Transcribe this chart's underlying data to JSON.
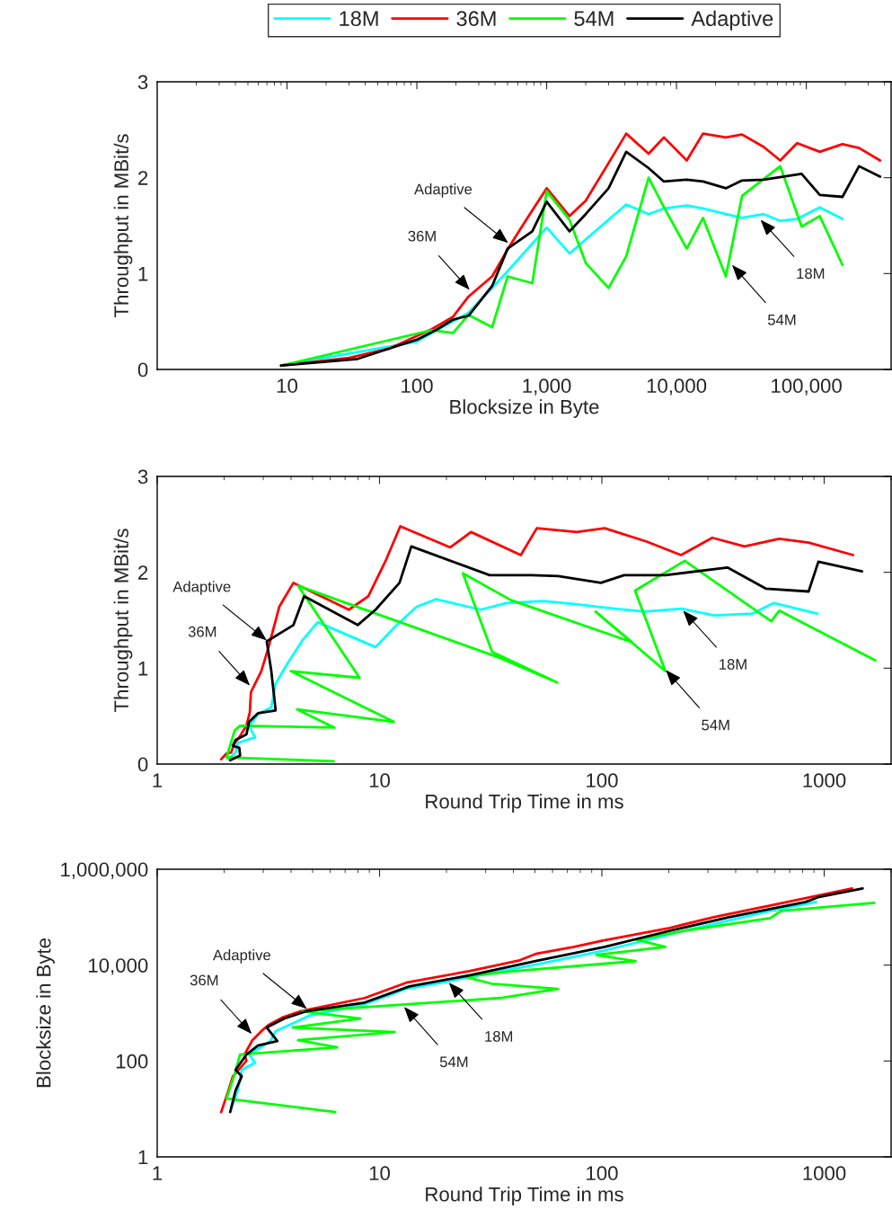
{
  "chart_data": [
    {
      "type": "line",
      "xlabel": "Blocksize in Byte",
      "ylabel": "Throughput in MBit/s",
      "log": "x",
      "legend": "top",
      "xlim": [
        1,
        450000
      ],
      "ylim": [
        0,
        3
      ],
      "xticks": [
        10,
        100,
        {
          "value": 1000,
          "label": "1,000"
        },
        {
          "value": 10000,
          "label": "10,000"
        },
        {
          "value": 100000,
          "label": "100,000"
        }
      ],
      "yticks": [
        0,
        1,
        2,
        3
      ],
      "series": [
        {
          "name": "18M",
          "color": "#00ffff",
          "x": [
            9,
            100,
            130,
            250,
            490,
            1000,
            1500,
            4100,
            6100,
            8100,
            12000,
            16000,
            24000,
            32000,
            47000,
            63000,
            85000,
            127000,
            190000
          ],
          "values": [
            0.04,
            0.29,
            0.38,
            0.59,
            1.01,
            1.48,
            1.21,
            1.72,
            1.62,
            1.68,
            1.71,
            1.68,
            1.62,
            1.58,
            1.62,
            1.55,
            1.57,
            1.69,
            1.57
          ]
        },
        {
          "name": "36M",
          "color": "#ff0000",
          "x": [
            9,
            30,
            62,
            130,
            190,
            250,
            380,
            520,
            750,
            1000,
            1500,
            2000,
            2900,
            4100,
            6100,
            8000,
            12000,
            16000,
            24000,
            32000,
            47000,
            63000,
            85000,
            127000,
            190000,
            255000,
            370000
          ],
          "values": [
            0.04,
            0.12,
            0.22,
            0.42,
            0.55,
            0.76,
            0.97,
            1.29,
            1.63,
            1.89,
            1.6,
            1.76,
            2.12,
            2.46,
            2.25,
            2.42,
            2.18,
            2.46,
            2.42,
            2.45,
            2.32,
            2.18,
            2.36,
            2.27,
            2.35,
            2.31,
            2.18
          ]
        },
        {
          "name": "54M",
          "color": "#00ff00",
          "x": [
            9,
            130,
            190,
            250,
            380,
            500,
            775,
            1000,
            1500,
            2000,
            3000,
            4100,
            6100,
            8100,
            12000,
            16000,
            24000,
            32000,
            63000,
            92000,
            127000,
            190000
          ],
          "values": [
            0.04,
            0.41,
            0.38,
            0.57,
            0.44,
            0.97,
            0.9,
            1.86,
            1.56,
            1.11,
            0.85,
            1.18,
            2.0,
            1.68,
            1.26,
            1.58,
            0.97,
            1.81,
            2.12,
            1.49,
            1.6,
            1.09
          ]
        },
        {
          "name": "Adaptive",
          "color": "#000000",
          "x": [
            9,
            35,
            62,
            100,
            140,
            190,
            250,
            380,
            500,
            775,
            1000,
            1500,
            2000,
            3000,
            4100,
            6100,
            8000,
            12000,
            16000,
            24000,
            32000,
            47000,
            92000,
            127000,
            190000,
            255000,
            370000
          ],
          "values": [
            0.04,
            0.11,
            0.22,
            0.31,
            0.41,
            0.52,
            0.56,
            0.87,
            1.26,
            1.44,
            1.75,
            1.44,
            1.62,
            1.89,
            2.27,
            2.1,
            1.96,
            1.98,
            1.96,
            1.89,
            1.97,
            1.98,
            2.04,
            1.82,
            1.8,
            2.12,
            2.01
          ]
        }
      ],
      "annotations": [
        {
          "text": "Adaptive",
          "x": 505,
          "y": 1.32
        },
        {
          "text": "36M",
          "x": 255,
          "y": 0.83
        },
        {
          "text": "18M",
          "x": 44500,
          "y": 1.56
        },
        {
          "text": "54M",
          "x": 26800,
          "y": 1.09
        }
      ]
    },
    {
      "type": "line",
      "xlabel": "Round Trip Time in ms",
      "ylabel": "Throughput in MBit/s",
      "log": "x",
      "xlim": [
        1,
        2000
      ],
      "ylim": [
        0,
        3
      ],
      "xticks": [
        1,
        10,
        100,
        1000
      ],
      "yticks": [
        0,
        1,
        2,
        3
      ],
      "series": [
        {
          "color": "#00ffff",
          "x": [
            2.09,
            2.25,
            2.3,
            2.76,
            2.59,
            2.84,
            3.26,
            3.41,
            3.88,
            4.5,
            5.27,
            9.6,
            11.7,
            14.7,
            18,
            28.5,
            37.3,
            54.4,
            74.4,
            114,
            156,
            229,
            320,
            476,
            594,
            933
          ],
          "values": [
            0.05,
            0.12,
            0.22,
            0.28,
            0.39,
            0.52,
            0.59,
            0.84,
            1.06,
            1.29,
            1.48,
            1.22,
            1.43,
            1.64,
            1.72,
            1.61,
            1.68,
            1.7,
            1.67,
            1.62,
            1.59,
            1.62,
            1.55,
            1.57,
            1.68,
            1.57
          ]
        },
        {
          "color": "#ff0000",
          "x": [
            1.94,
            2.05,
            2.15,
            2.23,
            2.34,
            2.52,
            2.61,
            2.64,
            2.94,
            3.17,
            3.54,
            4.1,
            7.28,
            8.9,
            10.7,
            12.4,
            20.8,
            25.8,
            43.2,
            51,
            77,
            103,
            159,
            227,
            314,
            438,
            628,
            851,
            1350
          ],
          "values": [
            0.05,
            0.11,
            0.12,
            0.22,
            0.28,
            0.4,
            0.54,
            0.75,
            0.97,
            1.22,
            1.64,
            1.89,
            1.61,
            1.75,
            2.13,
            2.48,
            2.26,
            2.42,
            2.18,
            2.46,
            2.42,
            2.46,
            2.32,
            2.18,
            2.36,
            2.27,
            2.35,
            2.31,
            2.18
          ]
        },
        {
          "color": "#00ff00",
          "x": [
            6.22,
            2.05,
            2.23,
            2.36,
            6.27,
            4.26,
            11.6,
            3.99,
            8.13,
            4.3,
            34.6,
            63,
            32.1,
            23.7,
            39,
            137,
            93.7,
            193,
            141,
            236,
            578,
            628,
            1700
          ],
          "values": [
            0.03,
            0.07,
            0.35,
            0.4,
            0.38,
            0.57,
            0.44,
            0.97,
            0.9,
            1.86,
            1.11,
            0.85,
            1.17,
            1.99,
            1.71,
            1.27,
            1.59,
            0.97,
            1.81,
            2.12,
            1.49,
            1.6,
            1.08
          ]
        },
        {
          "color": "#000000",
          "x": [
            2.13,
            2.36,
            2.34,
            2.19,
            2.25,
            2.52,
            2.59,
            2.84,
            3.41,
            3.26,
            3.11,
            4.1,
            4.58,
            7.98,
            9.6,
            12.3,
            13.9,
            31.3,
            48.2,
            63.6,
            99,
            126,
            193,
            367,
            546,
            851,
            942,
            1480
          ],
          "values": [
            0.04,
            0.09,
            0.17,
            0.19,
            0.25,
            0.31,
            0.44,
            0.53,
            0.56,
            0.97,
            1.28,
            1.45,
            1.75,
            1.45,
            1.61,
            1.89,
            2.27,
            1.97,
            1.97,
            1.96,
            1.89,
            1.97,
            1.97,
            2.05,
            1.83,
            1.8,
            2.11,
            2.01
          ]
        }
      ],
      "annotations": [
        {
          "text": "Adaptive",
          "x": 3.11,
          "y": 1.29
        },
        {
          "text": "36M",
          "x": 2.61,
          "y": 0.82
        },
        {
          "text": "18M",
          "x": 232,
          "y": 1.6
        },
        {
          "text": "54M",
          "x": 194,
          "y": 0.98
        }
      ]
    },
    {
      "type": "line",
      "xlabel": "Round Trip Time in ms",
      "ylabel": "Blocksize in Byte",
      "log": "xy",
      "xlim": [
        1,
        2000
      ],
      "ylim": [
        1,
        1000000
      ],
      "xticks": [
        1,
        10,
        100,
        1000
      ],
      "yticks": [
        1,
        100,
        {
          "value": 10000,
          "label": "10,000"
        },
        {
          "value": 1000000,
          "label": "1,000,000"
        }
      ],
      "series": [
        {
          "color": "#00ffff",
          "x": [
            2.15,
            2.3,
            2.4,
            2.76,
            2.59,
            3.23,
            3.41,
            4.8,
            8.58,
            13.2,
            20,
            25.3,
            50.4,
            103,
            236,
            572,
            920
          ],
          "values": [
            10.2,
            24,
            65,
            92,
            136,
            260,
            419,
            870,
            1530,
            3200,
            4500,
            5600,
            10200,
            20300,
            52000,
            135000,
            208000
          ]
        },
        {
          "color": "#ff0000",
          "x": [
            1.94,
            2.09,
            2.19,
            2.52,
            2.47,
            2.68,
            2.94,
            3.17,
            3.64,
            4.38,
            8.58,
            13.2,
            25.3,
            42.7,
            50.4,
            75,
            101,
            202,
            318,
            572,
            1335
          ],
          "values": [
            8.6,
            24,
            48,
            101,
            136,
            272,
            419,
            566,
            800,
            1080,
            2060,
            4300,
            7520,
            12600,
            17100,
            24100,
            32600,
            59600,
            100000,
            175000,
            397000
          ]
        },
        {
          "color": "#00ff00",
          "x": [
            6.33,
            2.05,
            2.23,
            2.36,
            6.45,
            4.3,
            11.7,
            4.06,
            8.2,
            4.5,
            34.9,
            63.5,
            31.8,
            24.1,
            40.1,
            142,
            94.4,
            193,
            143,
            236,
            572,
            640,
            1680
          ],
          "values": [
            8.6,
            16.5,
            53,
            136,
            193,
            272,
            401,
            500,
            765,
            1080,
            2060,
            3180,
            4110,
            5800,
            7520,
            12100,
            16300,
            24100,
            34000,
            52000,
            95800,
            135000,
            200000
          ]
        },
        {
          "color": "#000000",
          "x": [
            2.13,
            2.25,
            2.4,
            2.25,
            2.52,
            2.84,
            3.47,
            3.11,
            3.74,
            4.66,
            8.58,
            13.6,
            25.3,
            50.4,
            103,
            202,
            373,
            826,
            938,
            1490
          ],
          "values": [
            8.6,
            24,
            48,
            65,
            136,
            210,
            260,
            500,
            770,
            1080,
            1660,
            3600,
            6100,
            12200,
            24100,
            52000,
            100000,
            208000,
            260000,
            397000
          ]
        }
      ],
      "annotations": [
        {
          "text": "Adaptive",
          "x": 4.71,
          "y": 1230
        },
        {
          "text": "36M",
          "x": 2.66,
          "y": 368
        },
        {
          "text": "18M",
          "x": 20.5,
          "y": 4300
        },
        {
          "text": "54M",
          "x": 12.9,
          "y": 1340
        }
      ]
    }
  ]
}
